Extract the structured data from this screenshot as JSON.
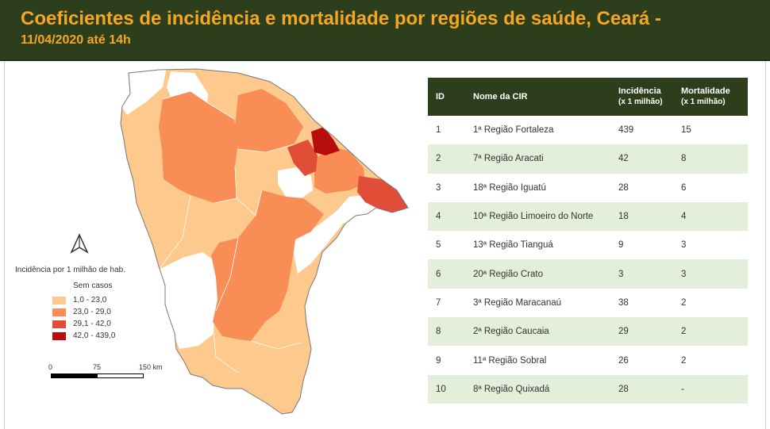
{
  "header": {
    "title_line1": "Coeficientes de incidência e mortalidade por regiões de saúde, Ceará -",
    "title_line2": "11/04/2020 até 14h"
  },
  "colors": {
    "header_bg": "#2c3e1c",
    "title_color": "#f5a623",
    "row_alt": "#e3eedb",
    "class_none": "#ffffff",
    "class_1": "#fdc98d",
    "class_2": "#f88d55",
    "class_3": "#e04e37",
    "class_4": "#b70d0d"
  },
  "legend": {
    "title": "Incidência por 1 milhão de hab.",
    "no_cases": "Sem casos",
    "items": [
      {
        "label": "1,0 - 23,0",
        "color": "#fdc98d"
      },
      {
        "label": "23,0 - 29,0",
        "color": "#f88d55"
      },
      {
        "label": "29,1 - 42,0",
        "color": "#e04e37"
      },
      {
        "label": "42,0 - 439,0",
        "color": "#b70d0d"
      }
    ]
  },
  "scale": {
    "labels": [
      "0",
      "75",
      "150 km"
    ]
  },
  "north_arrow": {
    "icon": "north-arrow-icon"
  },
  "table": {
    "headers": {
      "id": "ID",
      "name": "Nome da CIR",
      "incidence_line1": "Incidência",
      "incidence_line2": "(x 1 milhão)",
      "mortality_line1": "Mortalidade",
      "mortality_line2": "(x 1 milhão)"
    },
    "rows": [
      {
        "id": "1",
        "name": "1ª Região Fortaleza",
        "incidence": "439",
        "mortality": "15"
      },
      {
        "id": "2",
        "name": "7ª Região Aracati",
        "incidence": "42",
        "mortality": "8"
      },
      {
        "id": "3",
        "name": "18ª Região Iguatú",
        "incidence": "28",
        "mortality": "6"
      },
      {
        "id": "4",
        "name": "10ª Região Limoeiro do Norte",
        "incidence": "18",
        "mortality": "4"
      },
      {
        "id": "5",
        "name": "13ª Região Tianguá",
        "incidence": "9",
        "mortality": "3"
      },
      {
        "id": "6",
        "name": "20ª Região Crato",
        "incidence": "3",
        "mortality": "3"
      },
      {
        "id": "7",
        "name": "3ª Região Maracanaú",
        "incidence": "38",
        "mortality": "2"
      },
      {
        "id": "8",
        "name": "2ª Região Caucaia",
        "incidence": "29",
        "mortality": "2"
      },
      {
        "id": "9",
        "name": "11ª Região Sobral",
        "incidence": "26",
        "mortality": "2"
      },
      {
        "id": "10",
        "name": "8ª Região Quixadá",
        "incidence": "28",
        "mortality": "-"
      }
    ]
  }
}
